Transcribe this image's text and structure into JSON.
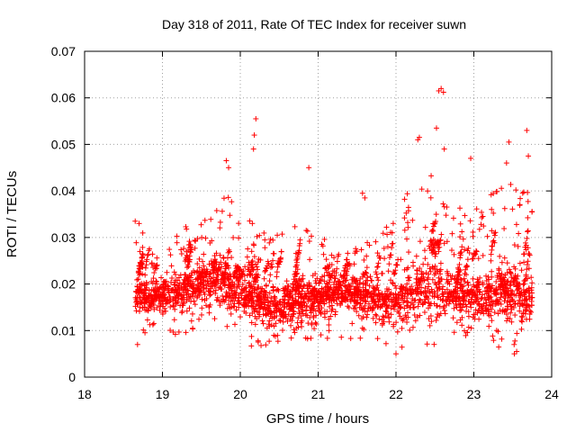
{
  "chart_data": {
    "type": "scatter",
    "title": "Day 318 of 2011, Rate Of TEC Index for receiver suwn",
    "xlabel": "GPS time / hours",
    "ylabel": "ROTI / TECUs",
    "xlim": [
      18,
      24
    ],
    "ylim": [
      0,
      0.07
    ],
    "xticks": [
      18,
      19,
      20,
      21,
      22,
      23,
      24
    ],
    "xtick_labels": [
      "18",
      "19",
      "20",
      "21",
      "22",
      "23",
      "24"
    ],
    "yticks": [
      0,
      0.01,
      0.02,
      0.03,
      0.04,
      0.05,
      0.06,
      0.07
    ],
    "ytick_labels": [
      "0",
      "0.01",
      "0.02",
      "0.03",
      "0.04",
      "0.05",
      "0.06",
      "0.07"
    ],
    "grid": true,
    "marker": "+",
    "color": "#ff0000",
    "x_range_of_data": [
      18.65,
      23.75
    ],
    "n_points_rendered": 2400,
    "notable_points": [
      {
        "x": 20.2,
        "y": 0.0555
      },
      {
        "x": 20.18,
        "y": 0.052
      },
      {
        "x": 20.17,
        "y": 0.049
      },
      {
        "x": 22.58,
        "y": 0.062
      },
      {
        "x": 22.55,
        "y": 0.0615
      },
      {
        "x": 22.61,
        "y": 0.0612
      },
      {
        "x": 22.52,
        "y": 0.0535
      },
      {
        "x": 22.3,
        "y": 0.0515
      },
      {
        "x": 22.28,
        "y": 0.051
      },
      {
        "x": 23.45,
        "y": 0.0505
      },
      {
        "x": 23.68,
        "y": 0.053
      },
      {
        "x": 23.7,
        "y": 0.0475
      },
      {
        "x": 19.82,
        "y": 0.0465
      },
      {
        "x": 19.85,
        "y": 0.045
      },
      {
        "x": 20.88,
        "y": 0.045
      },
      {
        "x": 22.62,
        "y": 0.049
      },
      {
        "x": 22.96,
        "y": 0.047
      },
      {
        "x": 23.42,
        "y": 0.046
      },
      {
        "x": 21.57,
        "y": 0.0395
      },
      {
        "x": 21.6,
        "y": 0.0385
      },
      {
        "x": 18.65,
        "y": 0.0335
      },
      {
        "x": 18.7,
        "y": 0.033
      },
      {
        "x": 18.68,
        "y": 0.007
      },
      {
        "x": 22.0,
        "y": 0.005
      },
      {
        "x": 23.52,
        "y": 0.005
      },
      {
        "x": 23.55,
        "y": 0.0055
      }
    ],
    "density_profile": {
      "x": [
        18.65,
        18.9,
        19.2,
        19.5,
        19.8,
        20.1,
        20.4,
        20.7,
        21.0,
        21.3,
        21.6,
        21.9,
        22.2,
        22.5,
        22.8,
        23.1,
        23.4,
        23.75
      ],
      "median_y": [
        0.018,
        0.017,
        0.018,
        0.02,
        0.021,
        0.017,
        0.015,
        0.016,
        0.017,
        0.018,
        0.017,
        0.016,
        0.018,
        0.019,
        0.018,
        0.017,
        0.018,
        0.017
      ],
      "upper_y": [
        0.033,
        0.028,
        0.032,
        0.034,
        0.04,
        0.034,
        0.03,
        0.033,
        0.032,
        0.027,
        0.03,
        0.033,
        0.042,
        0.044,
        0.037,
        0.038,
        0.042,
        0.04
      ],
      "lower_y": [
        0.007,
        0.01,
        0.008,
        0.009,
        0.01,
        0.006,
        0.007,
        0.008,
        0.008,
        0.008,
        0.008,
        0.006,
        0.006,
        0.006,
        0.008,
        0.008,
        0.005,
        0.008
      ]
    }
  }
}
